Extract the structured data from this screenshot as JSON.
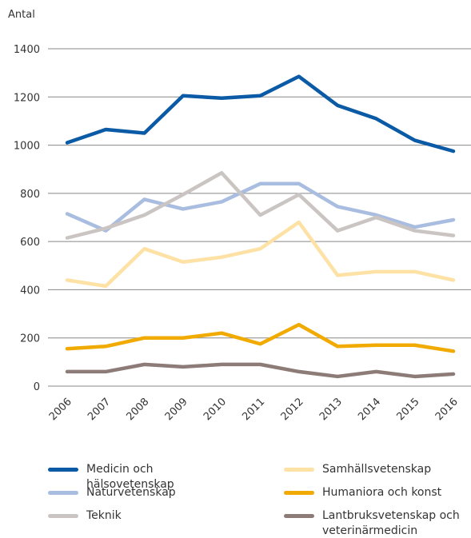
{
  "chart_data": {
    "type": "line",
    "y_label": "Antal",
    "categories": [
      "2006",
      "2007",
      "2008",
      "2009",
      "2010",
      "2011",
      "2012",
      "2013",
      "2014",
      "2015",
      "2016"
    ],
    "ylim": [
      0,
      1400
    ],
    "yticks": [
      0,
      200,
      400,
      600,
      800,
      1000,
      1200,
      1400
    ],
    "grid": true,
    "series": [
      {
        "name": "Medicin och hälsovetenskap",
        "color": "#0a5aa6",
        "values": [
          1010,
          1065,
          1050,
          1205,
          1195,
          1205,
          1285,
          1165,
          1110,
          1020,
          975
        ]
      },
      {
        "name": "Naturvetenskap",
        "color": "#a9bde0",
        "values": [
          715,
          645,
          775,
          735,
          765,
          840,
          840,
          745,
          710,
          660,
          690
        ]
      },
      {
        "name": "Teknik",
        "color": "#cac5c3",
        "values": [
          615,
          655,
          710,
          795,
          885,
          710,
          795,
          645,
          700,
          645,
          625
        ]
      },
      {
        "name": "Samhällsvetenskap",
        "color": "#fde1a5",
        "values": [
          440,
          415,
          570,
          515,
          535,
          570,
          680,
          460,
          475,
          475,
          440
        ]
      },
      {
        "name": "Humaniora och konst",
        "color": "#f1aa00",
        "values": [
          155,
          165,
          200,
          200,
          220,
          175,
          255,
          165,
          170,
          170,
          145
        ]
      },
      {
        "name": "Lantbruksvetenskap och veterinärmedicin",
        "color": "#8c7b77",
        "values": [
          60,
          60,
          90,
          80,
          90,
          90,
          60,
          40,
          60,
          40,
          50
        ]
      }
    ]
  }
}
